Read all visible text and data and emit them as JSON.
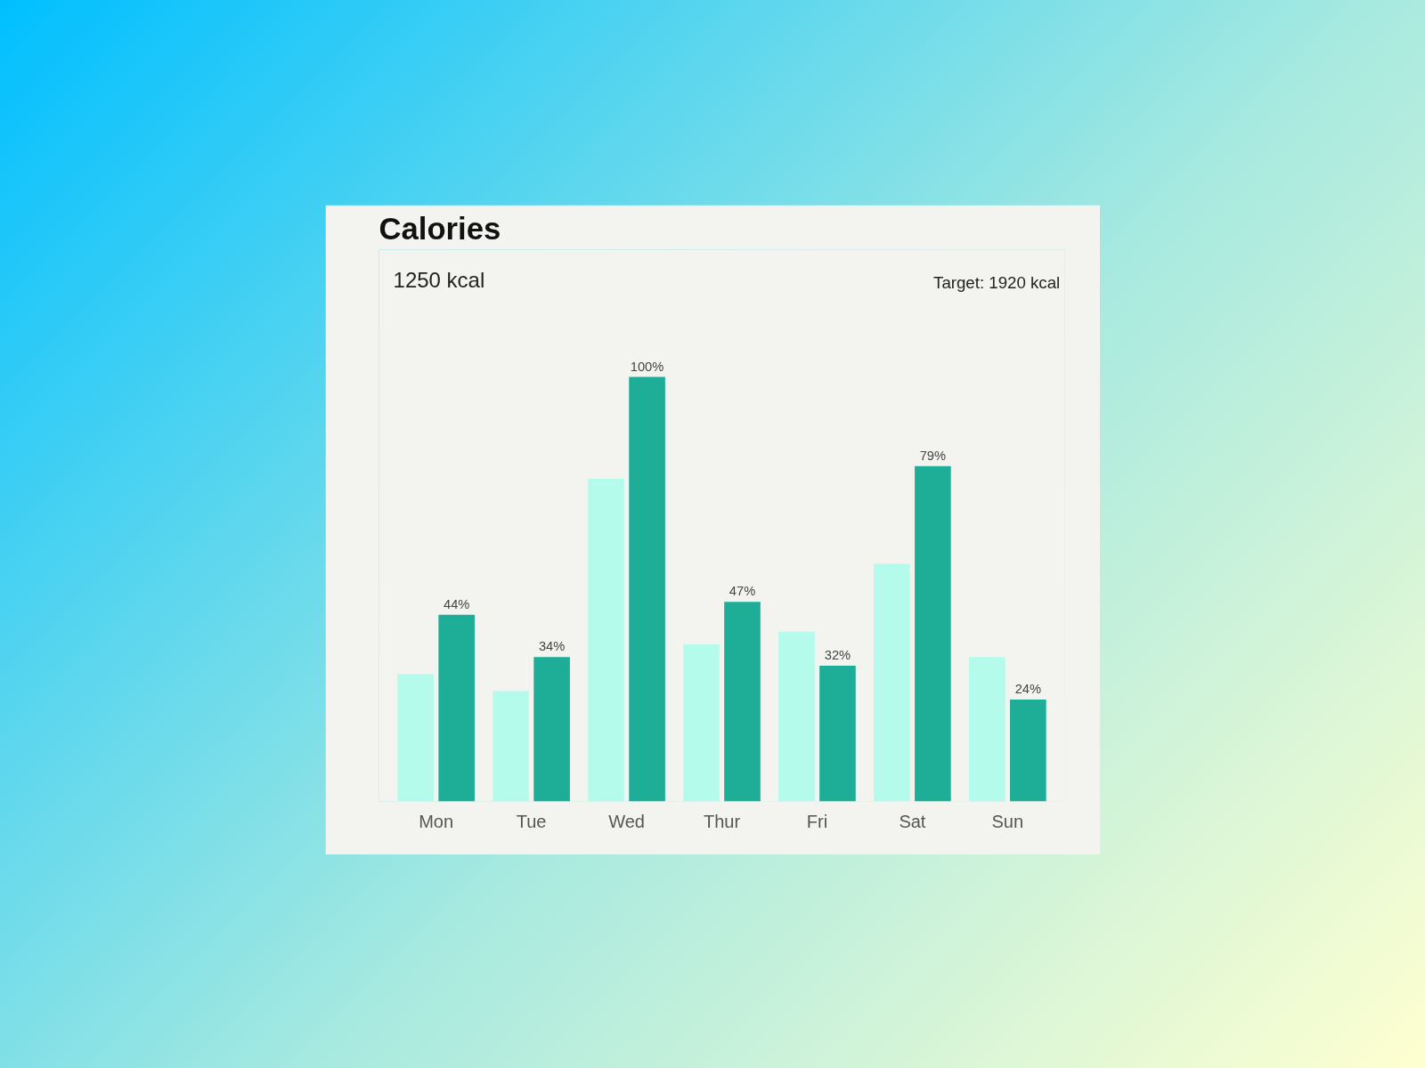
{
  "chart_data": {
    "type": "bar",
    "title": "Calories",
    "annotations": [
      "1250 kcal",
      "Target: 1920 kcal"
    ],
    "categories": [
      "Mon",
      "Tue",
      "Wed",
      "Thur",
      "Fri",
      "Sat",
      "Sun"
    ],
    "grid": false,
    "series": [
      {
        "color": "#b5fbec",
        "values": [
          30,
          26,
          76,
          37,
          40,
          56,
          34
        ]
      },
      {
        "color": "#1eae98",
        "values": [
          44,
          34,
          100,
          47,
          32,
          79,
          24
        ],
        "value_labels": [
          "44%",
          "34%",
          "100%",
          "47%",
          "32%",
          "79%",
          "24%"
        ]
      }
    ]
  }
}
